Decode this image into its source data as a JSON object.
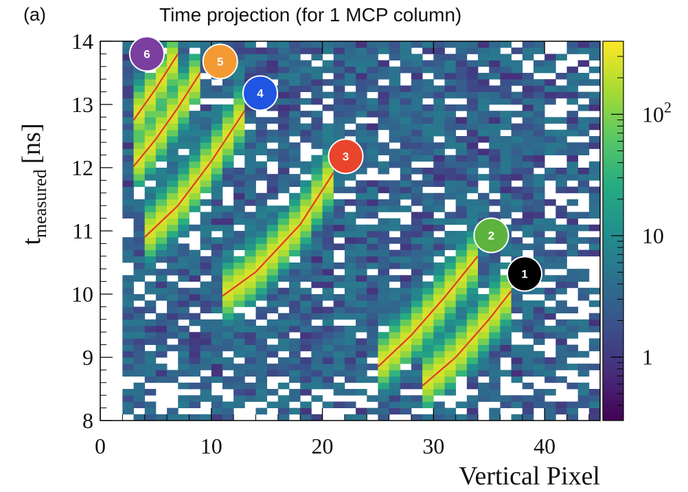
{
  "panel_label": "(a)",
  "chart_data": {
    "type": "heatmap",
    "title": "Time projection (for 1 MCP column)",
    "xlabel": "Vertical Pixel",
    "ylabel_main": "t",
    "ylabel_sub": "measured",
    "ylabel_unit": "[ns]",
    "xlim": [
      0,
      45
    ],
    "ylim": [
      8,
      14
    ],
    "x_ticks": [
      0,
      10,
      20,
      30,
      40
    ],
    "y_ticks": [
      8,
      9,
      10,
      11,
      12,
      13,
      14
    ],
    "colorbar": {
      "scale": "log",
      "range": [
        0.3,
        400
      ],
      "ticks": [
        {
          "value": 1,
          "label": "1"
        },
        {
          "value": 10,
          "label": "10"
        },
        {
          "value": 100,
          "label": "10",
          "sup": "2"
        }
      ],
      "colors": [
        "#440154",
        "#472c7a",
        "#3b518b",
        "#2c718e",
        "#21908d",
        "#27ad81",
        "#5cc863",
        "#aadc32",
        "#fde725"
      ]
    },
    "fit_curves": [
      {
        "id": "1",
        "color": "#000000",
        "x": [
          29,
          32,
          35,
          37
        ],
        "y": [
          8.55,
          9.0,
          9.6,
          10.05
        ]
      },
      {
        "id": "2",
        "color": "#5db33e",
        "x": [
          25,
          28,
          31,
          34
        ],
        "y": [
          8.85,
          9.35,
          9.95,
          10.6
        ]
      },
      {
        "id": "3",
        "color": "#e8452c",
        "x": [
          11,
          14,
          18,
          21
        ],
        "y": [
          9.97,
          10.35,
          11.1,
          11.92
        ]
      },
      {
        "id": "4",
        "color": "#1f55e0",
        "x": [
          4,
          7,
          10,
          13
        ],
        "y": [
          10.9,
          11.4,
          12.1,
          12.9
        ]
      },
      {
        "id": "5",
        "color": "#f39a33",
        "x": [
          3,
          5,
          7,
          9
        ],
        "y": [
          12.02,
          12.45,
          12.95,
          13.5
        ]
      },
      {
        "id": "6",
        "color": "#7b3fa0",
        "x": [
          3,
          5,
          7
        ],
        "y": [
          12.75,
          13.25,
          13.8
        ]
      }
    ],
    "fit_line_color": "#e03a2a",
    "peak_labels": [
      {
        "id": "6",
        "x": 4.2,
        "y": 13.8
      },
      {
        "id": "5",
        "x": 10.8,
        "y": 13.68
      },
      {
        "id": "4",
        "x": 14.4,
        "y": 13.18
      },
      {
        "id": "3",
        "x": 22.1,
        "y": 12.18
      },
      {
        "id": "2",
        "x": 35.2,
        "y": 10.93
      },
      {
        "id": "1",
        "x": 38.2,
        "y": 10.32
      }
    ]
  }
}
